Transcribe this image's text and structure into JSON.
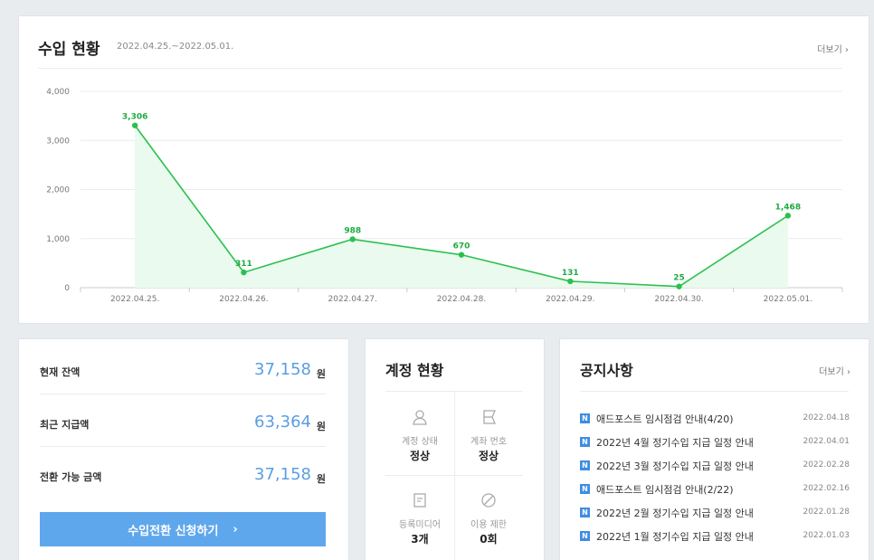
{
  "revenue": {
    "title": "수입 현황",
    "date_range": "2022.04.25.~2022.05.01.",
    "more_label": "더보기 ›"
  },
  "chart_data": {
    "type": "area",
    "categories": [
      "2022.04.25.",
      "2022.04.26.",
      "2022.04.27.",
      "2022.04.28.",
      "2022.04.29.",
      "2022.04.30.",
      "2022.05.01."
    ],
    "values": [
      3306,
      311,
      988,
      670,
      131,
      25,
      1468
    ],
    "value_labels": [
      "3,306",
      "311",
      "988",
      "670",
      "131",
      "25",
      "1,468"
    ],
    "y_ticks": [
      "4,000",
      "3,000",
      "2,000",
      "1,000",
      "0"
    ],
    "ylim": [
      0,
      4000
    ],
    "grid": true,
    "line_color": "#2bc04f",
    "fill_color": "#eafaee"
  },
  "balance": {
    "rows": [
      {
        "label": "현재 잔액",
        "value": "37,158",
        "unit": "원"
      },
      {
        "label": "최근 지급액",
        "value": "63,364",
        "unit": "원"
      },
      {
        "label": "전환 가능 금액",
        "value": "37,158",
        "unit": "원"
      }
    ],
    "button_label": "수입전환 신청하기",
    "button_arrow": "›"
  },
  "account": {
    "title": "계정 현황",
    "items": [
      {
        "icon": "person-icon",
        "label": "계정 상태",
        "value": "정상"
      },
      {
        "icon": "card-icon",
        "label": "계좌 번호",
        "value": "정상"
      },
      {
        "icon": "document-icon",
        "label": "등록미디어",
        "value": "3개"
      },
      {
        "icon": "ban-icon",
        "label": "이용 제한",
        "value": "0회"
      }
    ]
  },
  "notices": {
    "title": "공지사항",
    "more_label": "더보기 ›",
    "badge": "N",
    "items": [
      {
        "title": "애드포스트 임시점검 안내(4/20)",
        "date": "2022.04.18"
      },
      {
        "title": "2022년 4월 정기수입 지급 일정 안내",
        "date": "2022.04.01"
      },
      {
        "title": "2022년 3월 정기수입 지급 일정 안내",
        "date": "2022.02.28"
      },
      {
        "title": "애드포스트 임시점검 안내(2/22)",
        "date": "2022.02.16"
      },
      {
        "title": "2022년 2월 정기수입 지급 일정 안내",
        "date": "2022.01.28"
      },
      {
        "title": "2022년 1월 정기수입 지급 일정 안내",
        "date": "2022.01.03"
      }
    ]
  }
}
